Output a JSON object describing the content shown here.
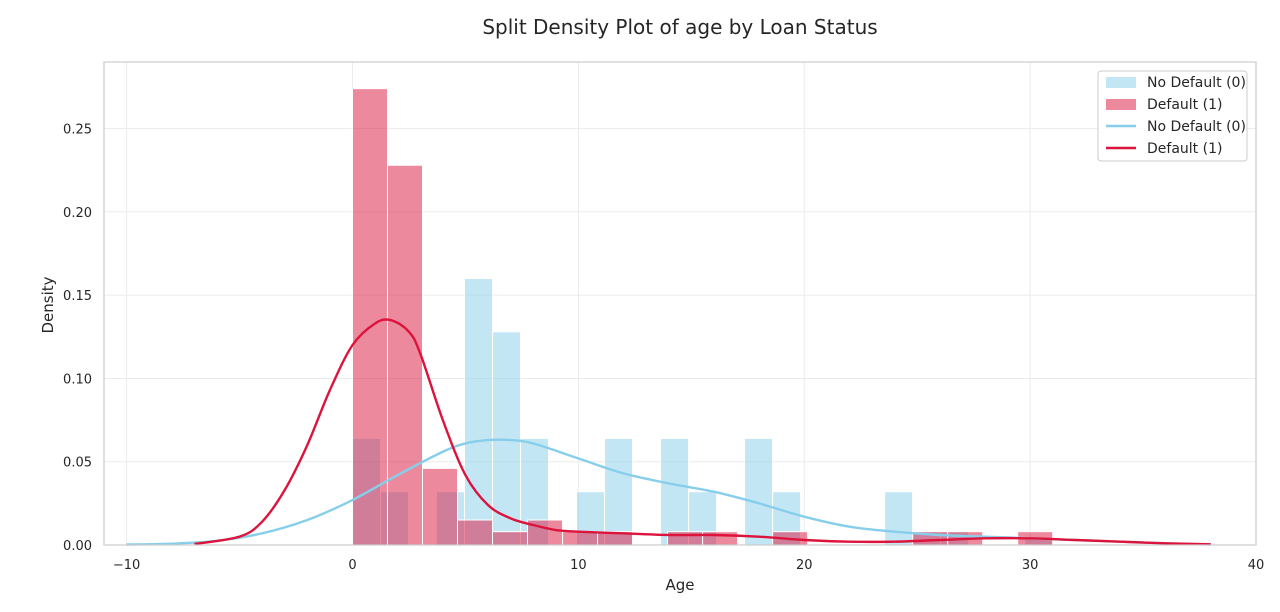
{
  "chart_data": {
    "type": "bar",
    "title": "Split Density Plot of age by Loan Status",
    "xlabel": "Age",
    "ylabel": "Density",
    "xlim": [
      -11,
      40
    ],
    "ylim": [
      0,
      0.29
    ],
    "xticks": [
      -10,
      0,
      10,
      20,
      30,
      40
    ],
    "xtick_labels": [
      "−10",
      "0",
      "10",
      "20",
      "30",
      "40"
    ],
    "yticks": [
      0.0,
      0.05,
      0.1,
      0.15,
      0.2,
      0.25
    ],
    "ytick_labels": [
      "0.00",
      "0.05",
      "0.10",
      "0.15",
      "0.20",
      "0.25"
    ],
    "grid": true,
    "legend_position": "top-right",
    "colors": {
      "no_default": "#87ceeb",
      "default": "#dc143c"
    },
    "histograms": [
      {
        "name": "No Default (0)",
        "color": "#87ceeb",
        "bin_width": 1.24,
        "bins": [
          {
            "x": 0.0,
            "y": 0.064
          },
          {
            "x": 1.24,
            "y": 0.032
          },
          {
            "x": 3.72,
            "y": 0.032
          },
          {
            "x": 4.96,
            "y": 0.16
          },
          {
            "x": 6.2,
            "y": 0.128
          },
          {
            "x": 7.44,
            "y": 0.064
          },
          {
            "x": 9.92,
            "y": 0.032
          },
          {
            "x": 11.16,
            "y": 0.064
          },
          {
            "x": 13.64,
            "y": 0.064
          },
          {
            "x": 14.88,
            "y": 0.032
          },
          {
            "x": 17.36,
            "y": 0.064
          },
          {
            "x": 18.6,
            "y": 0.032
          },
          {
            "x": 23.56,
            "y": 0.032
          },
          {
            "x": 24.8,
            "y": 0.008
          },
          {
            "x": 26.04,
            "y": 0.008
          },
          {
            "x": 29.76,
            "y": 0.004
          }
        ]
      },
      {
        "name": "Default (1)",
        "color": "#dc143c",
        "bin_width": 1.55,
        "bins": [
          {
            "x": 0.0,
            "y": 0.274
          },
          {
            "x": 1.55,
            "y": 0.228
          },
          {
            "x": 3.1,
            "y": 0.046
          },
          {
            "x": 4.65,
            "y": 0.015
          },
          {
            "x": 6.2,
            "y": 0.008
          },
          {
            "x": 7.75,
            "y": 0.015
          },
          {
            "x": 9.3,
            "y": 0.008
          },
          {
            "x": 10.85,
            "y": 0.008
          },
          {
            "x": 13.95,
            "y": 0.008
          },
          {
            "x": 15.5,
            "y": 0.008
          },
          {
            "x": 18.6,
            "y": 0.008
          },
          {
            "x": 24.8,
            "y": 0.008
          },
          {
            "x": 26.35,
            "y": 0.008
          },
          {
            "x": 29.45,
            "y": 0.008
          }
        ]
      }
    ],
    "series": [
      {
        "name": "No Default (0)",
        "color": "#87ceeb",
        "x": [
          -10,
          -8,
          -6,
          -4,
          -2,
          0,
          2,
          4,
          5,
          6,
          7,
          8,
          10,
          12,
          14,
          16,
          18,
          20,
          22,
          24,
          26,
          28,
          30,
          32,
          34,
          36,
          38
        ],
        "y": [
          0.0003,
          0.0008,
          0.0025,
          0.007,
          0.015,
          0.027,
          0.042,
          0.056,
          0.061,
          0.063,
          0.063,
          0.061,
          0.052,
          0.043,
          0.037,
          0.032,
          0.025,
          0.017,
          0.011,
          0.008,
          0.006,
          0.005,
          0.004,
          0.003,
          0.002,
          0.001,
          0.0003
        ]
      },
      {
        "name": "Default (1)",
        "color": "#dc143c",
        "x": [
          -7,
          -5,
          -4,
          -3,
          -2,
          -1,
          0,
          1,
          1.7,
          2.5,
          3,
          4,
          5,
          6,
          7,
          8,
          9,
          10,
          12,
          14,
          16,
          18,
          20,
          22,
          24,
          26,
          28,
          30,
          32,
          34,
          36,
          38
        ],
        "y": [
          0.0006,
          0.005,
          0.014,
          0.033,
          0.06,
          0.093,
          0.12,
          0.133,
          0.135,
          0.128,
          0.115,
          0.075,
          0.042,
          0.024,
          0.016,
          0.012,
          0.009,
          0.008,
          0.007,
          0.006,
          0.006,
          0.005,
          0.003,
          0.002,
          0.002,
          0.003,
          0.004,
          0.004,
          0.003,
          0.002,
          0.001,
          0.0004
        ]
      }
    ],
    "legend": {
      "entries": [
        {
          "label": "No Default (0)",
          "kind": "patch",
          "color": "#87ceeb"
        },
        {
          "label": "Default (1)",
          "kind": "patch",
          "color": "#dc143c"
        },
        {
          "label": "No Default (0)",
          "kind": "line",
          "color": "#87ceeb"
        },
        {
          "label": "Default (1)",
          "kind": "line",
          "color": "#dc143c"
        }
      ]
    }
  }
}
